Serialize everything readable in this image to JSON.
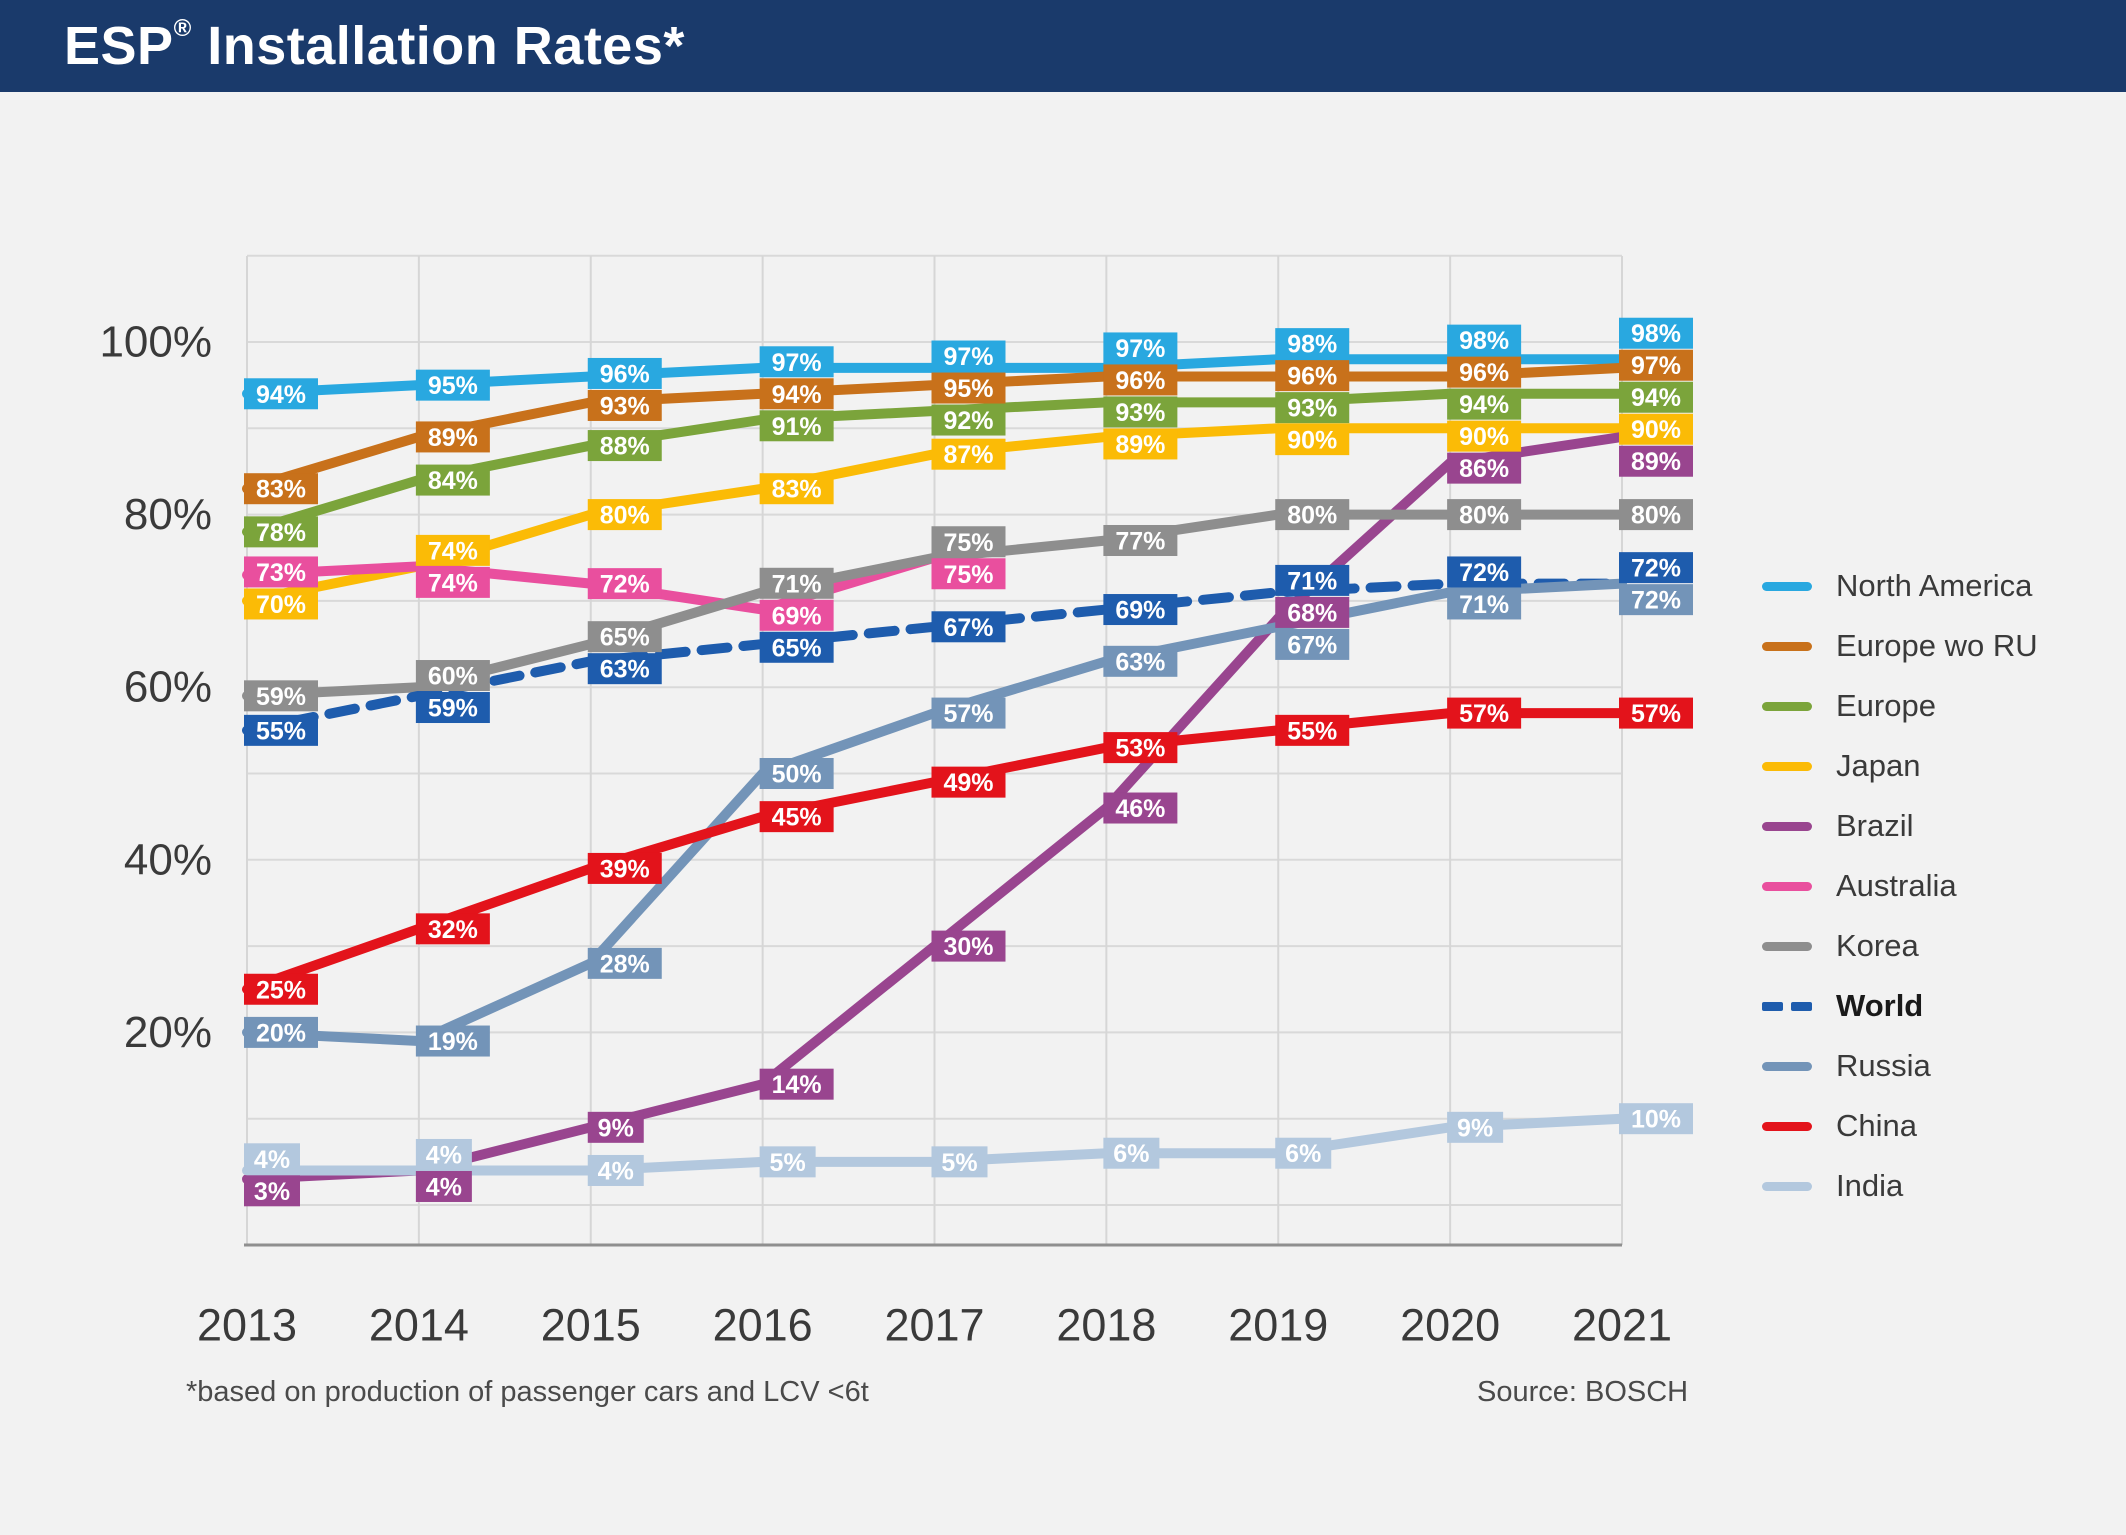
{
  "header": {
    "title_main": "ESP",
    "title_reg": "®",
    "title_rest": " Installation Rates*"
  },
  "footnote": "*based on production of passenger cars and LCV <6t",
  "source": "Source: BOSCH",
  "chart_data": {
    "type": "line",
    "title": "ESP® Installation Rates*",
    "x": [
      "2013",
      "2014",
      "2015",
      "2016",
      "2017",
      "2018",
      "2019",
      "2020",
      "2021"
    ],
    "xlabel": "",
    "ylabel": "",
    "ylim": [
      0,
      110
    ],
    "grid": true,
    "legend_position": "right",
    "unit": "%",
    "y_ticks": [
      {
        "value": 100,
        "label": "100%"
      },
      {
        "value": 80,
        "label": "80%"
      },
      {
        "value": 60,
        "label": "60%"
      },
      {
        "value": 40,
        "label": "40%"
      },
      {
        "value": 20,
        "label": "20%"
      }
    ],
    "series": [
      {
        "name": "North America",
        "color": "#29a8e0",
        "dashed": false,
        "bold_legend": false,
        "values": [
          94,
          95,
          96,
          97,
          97,
          97,
          98,
          98,
          98
        ]
      },
      {
        "name": "Europe wo RU",
        "color": "#c8711b",
        "dashed": false,
        "bold_legend": false,
        "values": [
          83,
          89,
          93,
          94,
          95,
          96,
          96,
          96,
          97
        ]
      },
      {
        "name": "Europe",
        "color": "#7ba43b",
        "dashed": false,
        "bold_legend": false,
        "values": [
          78,
          84,
          88,
          91,
          92,
          93,
          93,
          94,
          94
        ]
      },
      {
        "name": "Japan",
        "color": "#fbbb06",
        "dashed": false,
        "bold_legend": false,
        "values": [
          70,
          74,
          80,
          83,
          87,
          89,
          90,
          90,
          90
        ]
      },
      {
        "name": "Brazil",
        "color": "#99458f",
        "dashed": false,
        "bold_legend": false,
        "values": [
          3,
          4,
          9,
          14,
          30,
          46,
          68,
          86,
          89
        ]
      },
      {
        "name": "Australia",
        "color": "#e94f9e",
        "dashed": false,
        "bold_legend": false,
        "values": [
          73,
          74,
          72,
          69,
          75,
          null,
          null,
          null,
          null
        ]
      },
      {
        "name": "Korea",
        "color": "#8e8e8e",
        "dashed": false,
        "bold_legend": false,
        "values": [
          59,
          60,
          65,
          71,
          75,
          77,
          80,
          80,
          80
        ]
      },
      {
        "name": "World",
        "color": "#1e5cad",
        "dashed": true,
        "bold_legend": true,
        "values": [
          55,
          59,
          63,
          65,
          67,
          69,
          71,
          72,
          72
        ]
      },
      {
        "name": "Russia",
        "color": "#7394b8",
        "dashed": false,
        "bold_legend": false,
        "values": [
          20,
          19,
          28,
          50,
          57,
          63,
          67,
          71,
          72
        ]
      },
      {
        "name": "China",
        "color": "#e3131b",
        "dashed": false,
        "bold_legend": false,
        "values": [
          25,
          32,
          39,
          45,
          49,
          53,
          55,
          57,
          57
        ]
      },
      {
        "name": "India",
        "color": "#b3c8de",
        "dashed": false,
        "bold_legend": false,
        "values": [
          4,
          4,
          4,
          5,
          5,
          6,
          6,
          9,
          10
        ]
      }
    ]
  }
}
